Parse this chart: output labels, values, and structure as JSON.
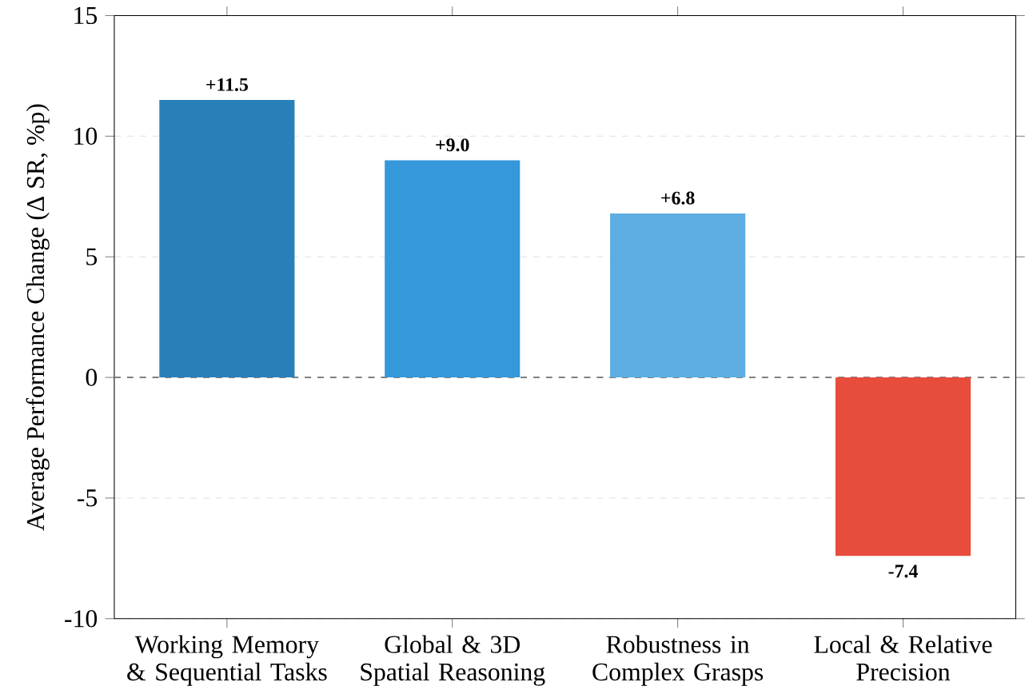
{
  "chart_data": {
    "type": "bar",
    "ylabel": "Average Performance Change (Δ SR, %p)",
    "categories": [
      "Working Memory & Sequential Tasks",
      "Global & 3D Spatial Reasoning",
      "Robustness in Complex Grasps",
      "Local & Relative Precision"
    ],
    "values": [
      11.5,
      9.0,
      6.8,
      -7.4
    ],
    "value_labels": [
      "+11.5",
      "+9.0",
      "+6.8",
      "-7.4"
    ],
    "colors": [
      "#2980b9",
      "#3498db",
      "#5dade2",
      "#e74c3c"
    ],
    "ylim": [
      -10,
      15
    ],
    "yticks": [
      -10,
      -5,
      0,
      5,
      10,
      15
    ],
    "grid": "y",
    "ref_lines": [
      {
        "axis": "y",
        "value": 0,
        "color": "#808080",
        "line_style": "dashed"
      }
    ]
  }
}
